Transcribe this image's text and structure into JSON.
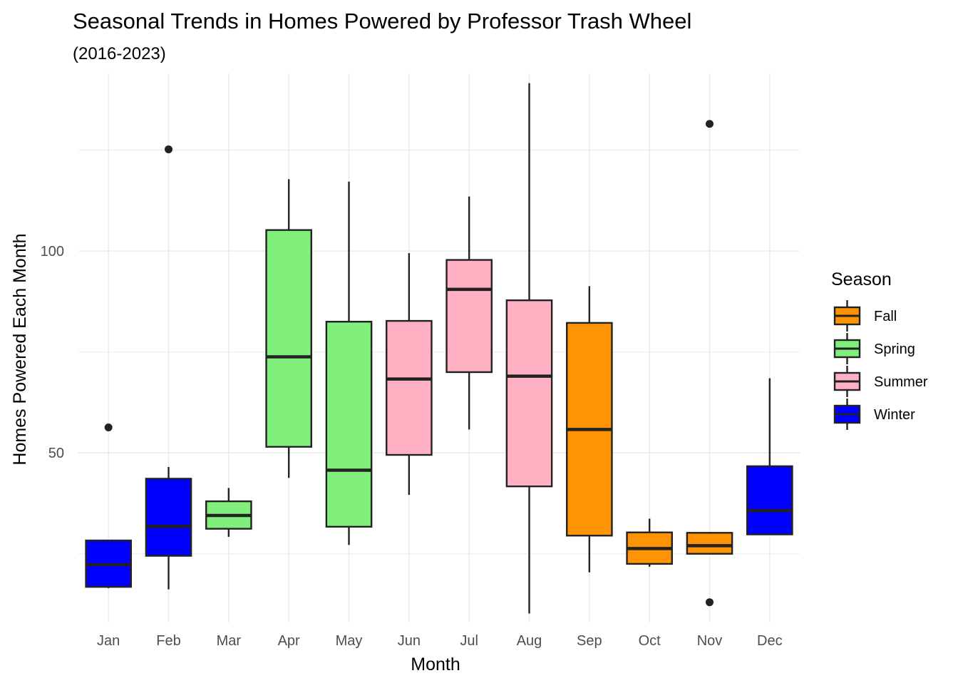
{
  "chart_data": {
    "type": "boxplot",
    "title": "Seasonal Trends in Homes Powered by Professor Trash Wheel",
    "subtitle": "(2016-2023)",
    "xlabel": "Month",
    "ylabel": "Homes Powered Each Month",
    "ylim": [
      8,
      144
    ],
    "y_ticks": [
      50,
      100
    ],
    "x_tick_labels": [
      "Jan",
      "Feb",
      "Mar",
      "Apr",
      "May",
      "Jun",
      "Jul",
      "Aug",
      "Sep",
      "Oct",
      "Nov",
      "Dec"
    ],
    "grid": true,
    "legend": {
      "title": "Season",
      "position": "right",
      "entries": [
        {
          "name": "Fall",
          "color": "#ff9306"
        },
        {
          "name": "Spring",
          "color": "#80ef7c"
        },
        {
          "name": "Summer",
          "color": "#ffb1c3"
        },
        {
          "name": "Winter",
          "color": "#0000ff"
        }
      ]
    },
    "boxes": [
      {
        "category": "Jan",
        "season": "Winter",
        "whisker_low": 16.5,
        "q1": 16.8,
        "median": 22.3,
        "q3": 28.3,
        "whisker_high": 28.3,
        "outliers": [
          56.3
        ]
      },
      {
        "category": "Feb",
        "season": "Winter",
        "whisker_low": 16.2,
        "q1": 24.5,
        "median": 31.8,
        "q3": 43.6,
        "whisker_high": 46.5,
        "outliers": [
          125.2
        ]
      },
      {
        "category": "Mar",
        "season": "Spring",
        "whisker_low": 29.2,
        "q1": 31.2,
        "median": 34.5,
        "q3": 38.0,
        "whisker_high": 41.3,
        "outliers": []
      },
      {
        "category": "Apr",
        "season": "Spring",
        "whisker_low": 43.8,
        "q1": 51.5,
        "median": 73.8,
        "q3": 105.2,
        "whisker_high": 117.8,
        "outliers": []
      },
      {
        "category": "May",
        "season": "Spring",
        "whisker_low": 27.2,
        "q1": 31.7,
        "median": 45.7,
        "q3": 82.5,
        "whisker_high": 117.2,
        "outliers": []
      },
      {
        "category": "Jun",
        "season": "Summer",
        "whisker_low": 39.6,
        "q1": 49.5,
        "median": 68.3,
        "q3": 82.7,
        "whisker_high": 99.5,
        "outliers": []
      },
      {
        "category": "Jul",
        "season": "Summer",
        "whisker_low": 55.8,
        "q1": 70.0,
        "median": 90.5,
        "q3": 97.8,
        "whisker_high": 113.5,
        "outliers": []
      },
      {
        "category": "Aug",
        "season": "Summer",
        "whisker_low": 10.2,
        "q1": 41.7,
        "median": 69.0,
        "q3": 87.8,
        "whisker_high": 141.6,
        "outliers": []
      },
      {
        "category": "Sep",
        "season": "Fall",
        "whisker_low": 20.4,
        "q1": 29.5,
        "median": 55.8,
        "q3": 82.2,
        "whisker_high": 91.3,
        "outliers": []
      },
      {
        "category": "Oct",
        "season": "Fall",
        "whisker_low": 21.8,
        "q1": 22.5,
        "median": 26.3,
        "q3": 30.3,
        "whisker_high": 33.7,
        "outliers": []
      },
      {
        "category": "Nov",
        "season": "Fall",
        "whisker_low": 25.0,
        "q1": 25.0,
        "median": 27.0,
        "q3": 30.2,
        "whisker_high": 30.2,
        "outliers": [
          131.5,
          13.0
        ]
      },
      {
        "category": "Dec",
        "season": "Winter",
        "whisker_low": 29.8,
        "q1": 29.8,
        "median": 35.7,
        "q3": 46.7,
        "whisker_high": 68.5,
        "outliers": []
      }
    ]
  }
}
